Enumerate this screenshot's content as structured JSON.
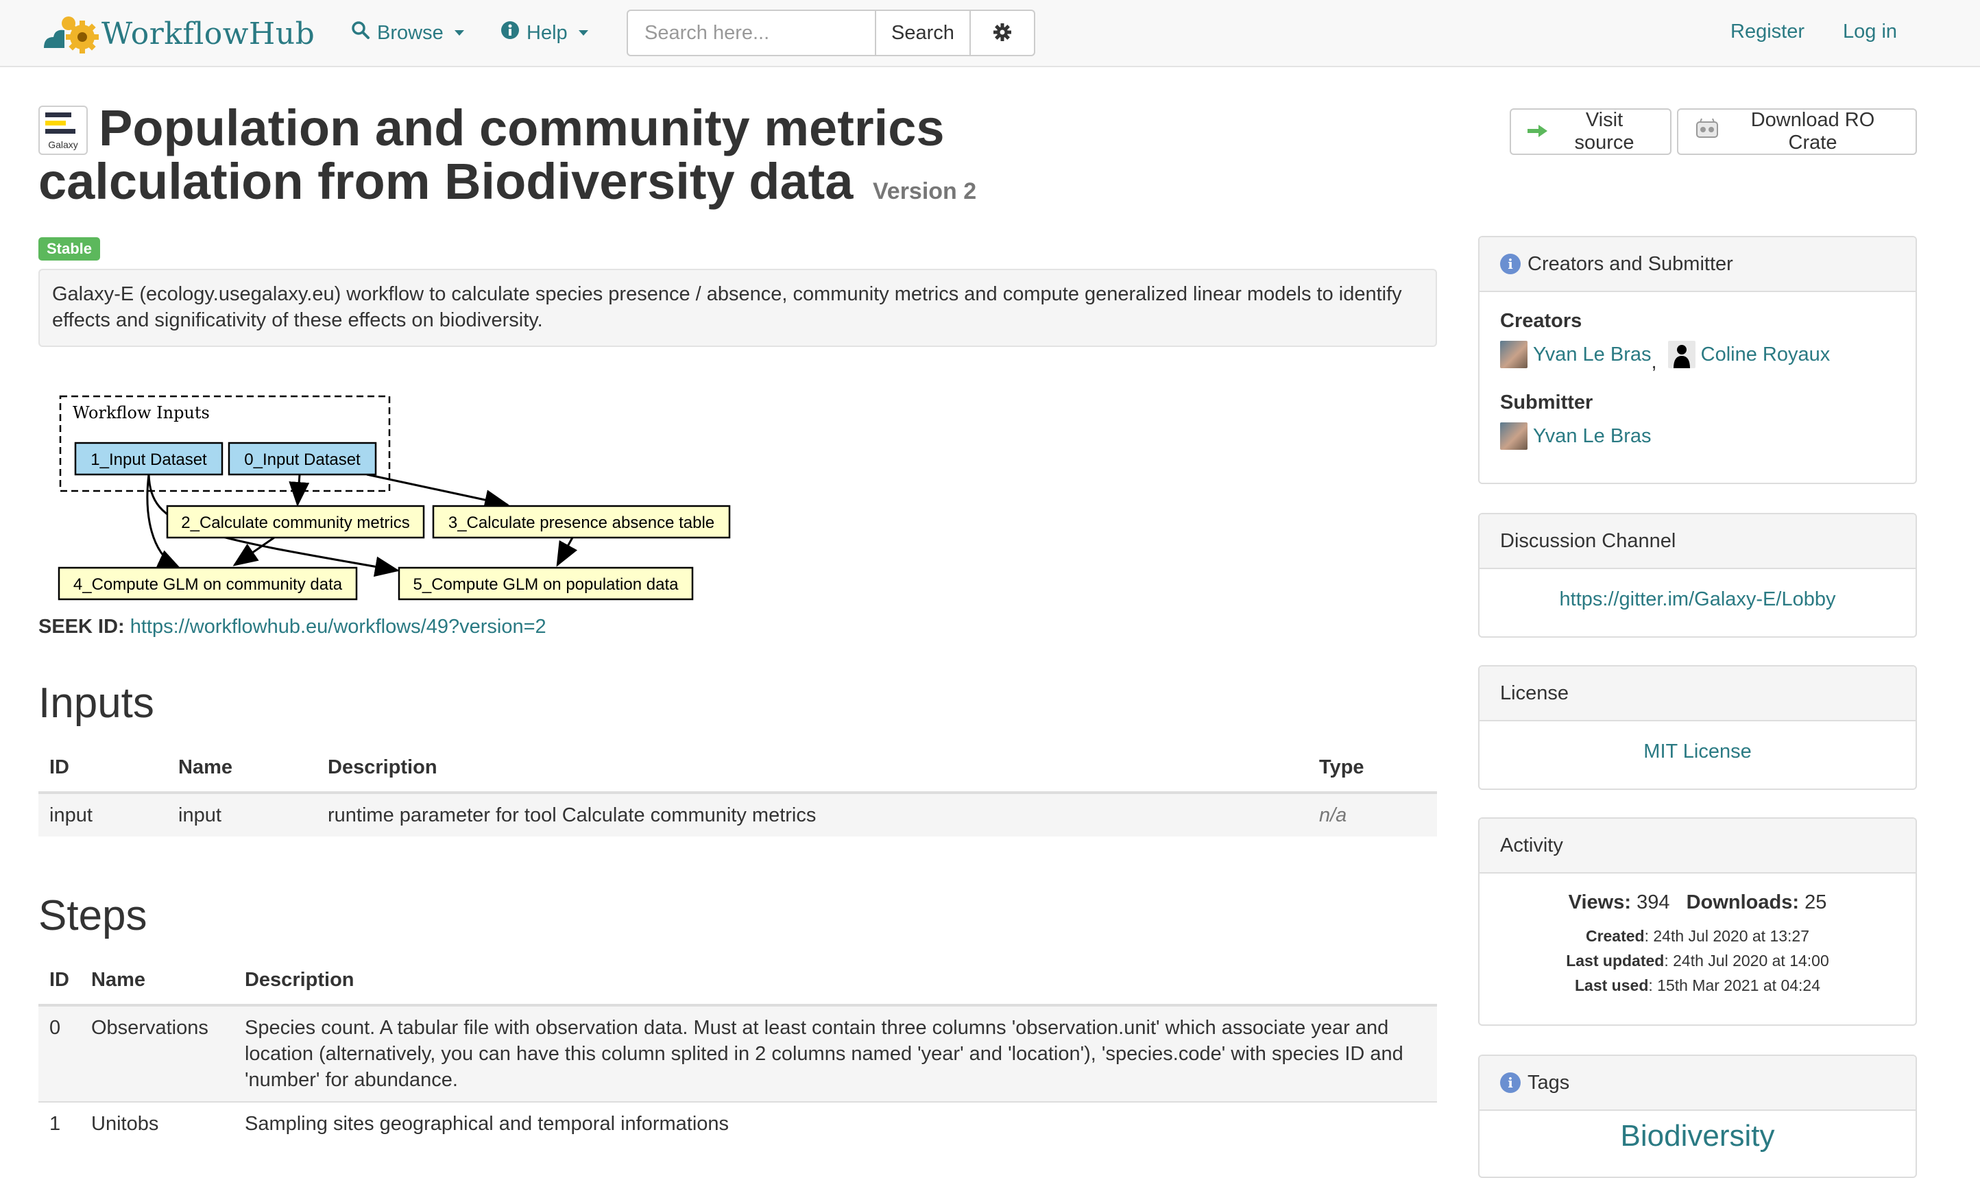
{
  "nav": {
    "brand": "WorkflowHub",
    "browse": "Browse",
    "help": "Help",
    "search_placeholder": "Search here...",
    "search_button": "Search",
    "register": "Register",
    "login": "Log in"
  },
  "header": {
    "icon_label": "Galaxy",
    "title": "Population and community metrics calculation from Biodiversity data",
    "version": "Version 2",
    "visit_source": "Visit source",
    "download_ro_crate": "Download RO Crate",
    "badge": "Stable",
    "description": "Galaxy-E (ecology.usegalaxy.eu) workflow to calculate species presence / absence, community metrics and compute generalized linear models to identify effects and significativity of these effects on biodiversity."
  },
  "diagram": {
    "group_label": "Workflow Inputs",
    "nodes": {
      "input1": "1_Input Dataset",
      "input0": "0_Input Dataset",
      "step2": "2_Calculate community metrics",
      "step3": "3_Calculate presence absence table",
      "step4": "4_Compute GLM on community data",
      "step5": "5_Compute GLM on population data"
    },
    "colors": {
      "input_fill": "#a8d8f0",
      "step_fill": "#ffffcc"
    }
  },
  "seek": {
    "label": "SEEK ID:",
    "url": "https://workflowhub.eu/workflows/49?version=2"
  },
  "inputs": {
    "heading": "Inputs",
    "columns": {
      "id": "ID",
      "name": "Name",
      "description": "Description",
      "type": "Type"
    },
    "rows": [
      {
        "id": "input",
        "name": "input",
        "description": "runtime parameter for tool Calculate community metrics",
        "type": "n/a"
      }
    ]
  },
  "steps": {
    "heading": "Steps",
    "columns": {
      "id": "ID",
      "name": "Name",
      "description": "Description"
    },
    "rows": [
      {
        "id": "0",
        "name": "Observations",
        "description": "Species count. A tabular file with observation data. Must at least contain three columns 'observation.unit' which associate year and location (alternatively, you can have this column splited in 2 columns named 'year' and 'location'), 'species.code' with species ID and 'number' for abundance."
      },
      {
        "id": "1",
        "name": "Unitobs",
        "description": "Sampling sites geographical and temporal informations"
      }
    ]
  },
  "sidebar": {
    "creators_panel": {
      "title": "Creators and Submitter",
      "creators_label": "Creators",
      "creator1": "Yvan Le Bras",
      "separator": ",",
      "creator2": "Coline Royaux",
      "submitter_label": "Submitter",
      "submitter": "Yvan Le Bras"
    },
    "discussion_panel": {
      "title": "Discussion Channel",
      "link": "https://gitter.im/Galaxy-E/Lobby"
    },
    "license_panel": {
      "title": "License",
      "link": "MIT License"
    },
    "activity_panel": {
      "title": "Activity",
      "views_label": "Views:",
      "views": "394",
      "downloads_label": "Downloads:",
      "downloads": "25",
      "created_label": "Created",
      "created": ": 24th Jul 2020 at 13:27",
      "updated_label": "Last updated",
      "updated": ": 24th Jul 2020 at 14:00",
      "used_label": "Last used",
      "used": ": 15th Mar 2021 at 04:24"
    },
    "tags_panel": {
      "title": "Tags",
      "first_tag": "Biodiversity"
    }
  },
  "theme": {
    "link_color": "#2a7a83",
    "badge_color": "#5cb85c"
  }
}
